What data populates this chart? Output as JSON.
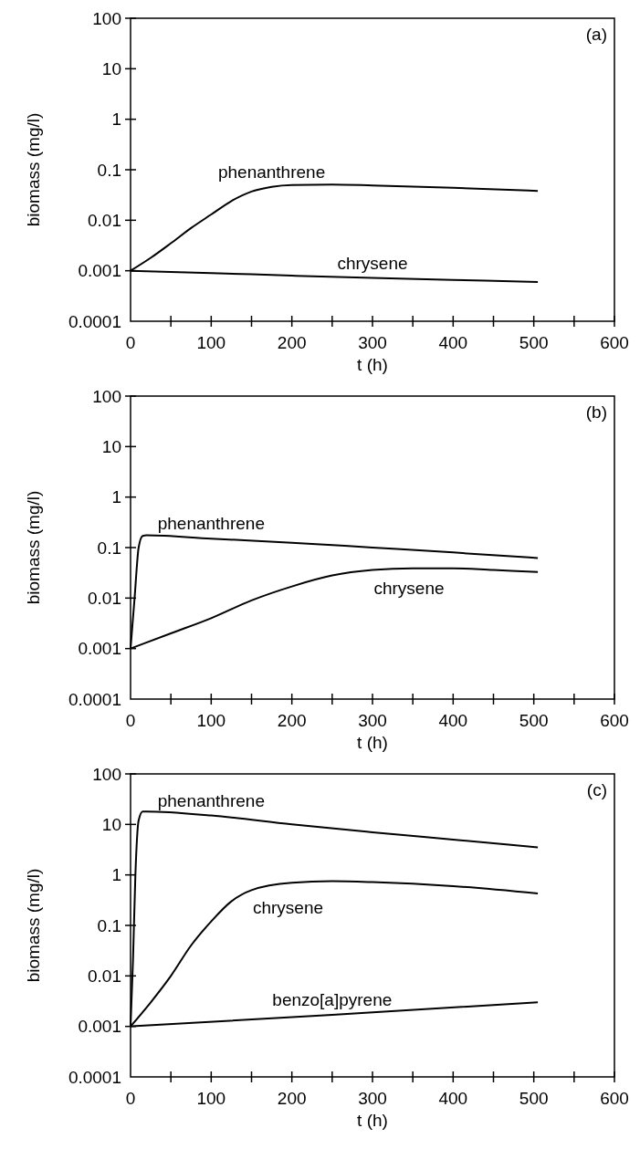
{
  "chart_data": [
    {
      "type": "line",
      "xlabel": "t (h)",
      "ylabel": "biomass (mg/l)",
      "annotations": [
        "(a)"
      ],
      "log": "y",
      "grid": false,
      "marker": "none",
      "line_style": "solid",
      "xlim": [
        0,
        600
      ],
      "ylim": [
        0.0001,
        100
      ],
      "xticks": [
        0,
        {
          "value": 50,
          "label": null
        },
        100,
        {
          "value": 150,
          "label": null
        },
        200,
        {
          "value": 250,
          "label": null
        },
        300,
        {
          "value": 350,
          "label": null
        },
        400,
        {
          "value": 450,
          "label": null
        },
        500,
        {
          "value": 550,
          "label": null
        },
        600
      ],
      "yticks": [
        0.0001,
        0.001,
        0.01,
        0.1,
        1,
        10,
        100
      ],
      "series": [
        {
          "name": "phenanthrene",
          "color": "#000000",
          "x": [
            0,
            25,
            50,
            75,
            100,
            125,
            150,
            175,
            200,
            250,
            300,
            400,
            505
          ],
          "values": [
            0.001,
            0.0018,
            0.0035,
            0.007,
            0.013,
            0.024,
            0.037,
            0.046,
            0.05,
            0.051,
            0.049,
            0.044,
            0.038
          ]
        },
        {
          "name": "chrysene",
          "color": "#000000",
          "x": [
            0,
            100,
            200,
            300,
            400,
            505
          ],
          "values": [
            0.001,
            0.0009,
            0.0008,
            0.00072,
            0.00066,
            0.0006
          ]
        }
      ]
    },
    {
      "type": "line",
      "xlabel": "t (h)",
      "ylabel": "biomass (mg/l)",
      "annotations": [
        "(b)"
      ],
      "log": "y",
      "grid": false,
      "marker": "none",
      "line_style": "solid",
      "xlim": [
        0,
        600
      ],
      "ylim": [
        0.0001,
        100
      ],
      "xticks": [
        0,
        {
          "value": 50,
          "label": null
        },
        100,
        {
          "value": 150,
          "label": null
        },
        200,
        {
          "value": 250,
          "label": null
        },
        300,
        {
          "value": 350,
          "label": null
        },
        400,
        {
          "value": 450,
          "label": null
        },
        500,
        {
          "value": 550,
          "label": null
        },
        600
      ],
      "yticks": [
        0.0001,
        0.001,
        0.01,
        0.1,
        1,
        10,
        100
      ],
      "series": [
        {
          "name": "phenanthrene",
          "color": "#000000",
          "x": [
            0,
            5,
            10,
            15,
            20,
            100,
            200,
            300,
            400,
            505
          ],
          "values": [
            0.001,
            0.01,
            0.1,
            0.17,
            0.175,
            0.15,
            0.125,
            0.1,
            0.08,
            0.062
          ]
        },
        {
          "name": "chrysene",
          "color": "#000000",
          "x": [
            0,
            50,
            100,
            150,
            200,
            250,
            300,
            350,
            400,
            450,
            505
          ],
          "values": [
            0.001,
            0.002,
            0.004,
            0.009,
            0.017,
            0.028,
            0.036,
            0.039,
            0.039,
            0.036,
            0.033
          ]
        }
      ]
    },
    {
      "type": "line",
      "xlabel": "t (h)",
      "ylabel": "biomass (mg/l)",
      "annotations": [
        "(c)"
      ],
      "log": "y",
      "grid": false,
      "marker": "none",
      "line_style": "solid",
      "xlim": [
        0,
        600
      ],
      "ylim": [
        0.0001,
        100
      ],
      "xticks": [
        0,
        {
          "value": 50,
          "label": null
        },
        100,
        {
          "value": 150,
          "label": null
        },
        200,
        {
          "value": 250,
          "label": null
        },
        300,
        {
          "value": 350,
          "label": null
        },
        400,
        {
          "value": 450,
          "label": null
        },
        500,
        {
          "value": 550,
          "label": null
        },
        600
      ],
      "yticks": [
        0.0001,
        0.001,
        0.01,
        0.1,
        1,
        10,
        100
      ],
      "series": [
        {
          "name": "phenanthrene",
          "color": "#000000",
          "x": [
            0,
            3,
            6,
            10,
            15,
            20,
            100,
            200,
            300,
            400,
            505
          ],
          "values": [
            0.001,
            0.02,
            1,
            12,
            18,
            18,
            15,
            10,
            7,
            5,
            3.5
          ]
        },
        {
          "name": "chrysene",
          "color": "#000000",
          "x": [
            0,
            25,
            50,
            75,
            100,
            125,
            150,
            200,
            250,
            300,
            400,
            505
          ],
          "values": [
            0.001,
            0.003,
            0.01,
            0.04,
            0.12,
            0.3,
            0.5,
            0.7,
            0.75,
            0.72,
            0.6,
            0.43
          ]
        },
        {
          "name": "benzo[a]pyrene",
          "color": "#000000",
          "x": [
            0,
            250,
            505
          ],
          "values": [
            0.001,
            0.0017,
            0.003
          ]
        }
      ]
    }
  ]
}
